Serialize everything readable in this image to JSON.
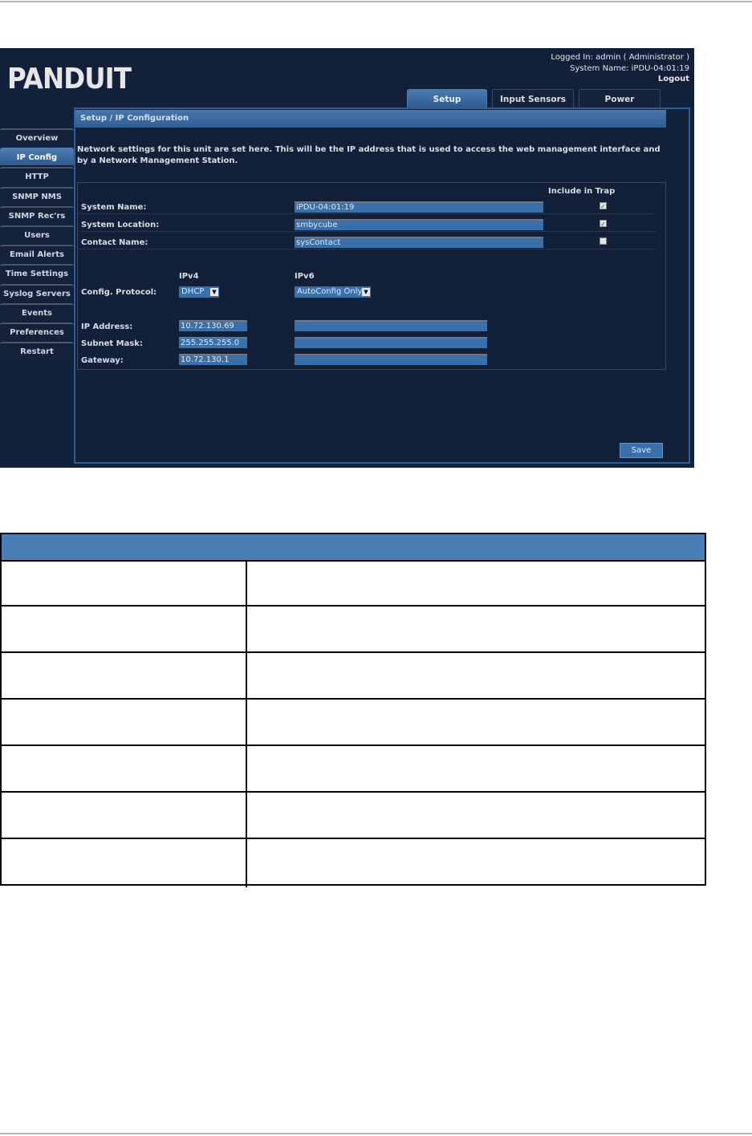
{
  "logo": "PANDUIT",
  "user": {
    "logged_in": "Logged In: admin ( Administrator )",
    "system_name": "System Name: iPDU-04:01:19",
    "logout": "Logout"
  },
  "tabs": [
    {
      "label": "Setup",
      "active": true
    },
    {
      "label": "Input Sensors"
    },
    {
      "label": "Power"
    }
  ],
  "sidebar": [
    "Overview",
    "IP Config",
    "HTTP",
    "SNMP NMS",
    "SNMP Rec'rs",
    "Users",
    "Email Alerts",
    "Time Settings",
    "Syslog Servers",
    "Events",
    "Preferences",
    "Restart"
  ],
  "sidebar_active": "IP Config",
  "panel": {
    "title": "Setup / IP Configuration",
    "description": "Network settings for this unit are set here. This will be the IP address that is used to access the web management interface and by a Network Management Station.",
    "include_in_trap": "Include in Trap",
    "fields": [
      {
        "label": "System Name:",
        "value": "iPDU-04:01:19",
        "trap": true
      },
      {
        "label": "System Location:",
        "value": "smbycube",
        "trap": true
      },
      {
        "label": "Contact Name:",
        "value": "sysContact",
        "trap": false
      }
    ],
    "ipv4": "IPv4",
    "ipv6": "IPv6",
    "config_protocol": {
      "label": "Config. Protocol:",
      "ipv4": "DHCP",
      "ipv6": "AutoConfig Only"
    },
    "ip_rows": [
      {
        "label": "IP Address:",
        "ipv4": "10.72.130.69",
        "ipv6": ""
      },
      {
        "label": "Subnet Mask:",
        "ipv4": "255.255.255.0",
        "ipv6": ""
      },
      {
        "label": "Gateway:",
        "ipv4": "10.72.130.1",
        "ipv6": ""
      }
    ],
    "save": "Save"
  },
  "colors": {
    "background": "#12203a",
    "accent": "#3a70aa",
    "table_header": "#4a7fb5"
  }
}
